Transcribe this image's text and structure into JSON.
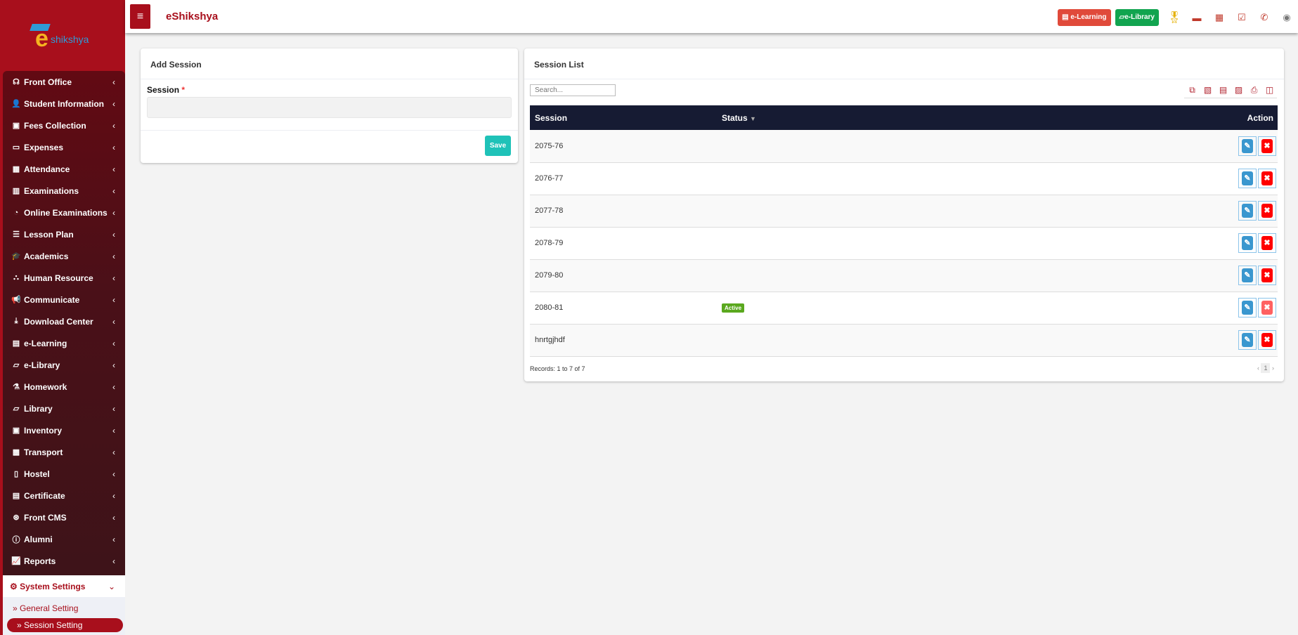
{
  "app": {
    "title": "eShikshya",
    "logo_text": "eshikshya"
  },
  "header": {
    "elearning": "e-Learning",
    "elibrary": "e-Library",
    "elearning_color": "#e04a3a",
    "elibrary_color": "#11a44f"
  },
  "sidebar": {
    "items": [
      {
        "label": "Front Office",
        "icon": "☊"
      },
      {
        "label": "Student Information",
        "icon": "👤"
      },
      {
        "label": "Fees Collection",
        "icon": "▣"
      },
      {
        "label": "Expenses",
        "icon": "▭"
      },
      {
        "label": "Attendance",
        "icon": "▦"
      },
      {
        "label": "Examinations",
        "icon": "▥"
      },
      {
        "label": "Online Examinations",
        "icon": "◔"
      },
      {
        "label": "Lesson Plan",
        "icon": "☰"
      },
      {
        "label": "Academics",
        "icon": "🎓"
      },
      {
        "label": "Human Resource",
        "icon": "⛬"
      },
      {
        "label": "Communicate",
        "icon": "📢"
      },
      {
        "label": "Download Center",
        "icon": "⤓"
      },
      {
        "label": "e-Learning",
        "icon": "▤"
      },
      {
        "label": "e-Library",
        "icon": "▱"
      },
      {
        "label": "Homework",
        "icon": "⚗"
      },
      {
        "label": "Library",
        "icon": "▱"
      },
      {
        "label": "Inventory",
        "icon": "▣"
      },
      {
        "label": "Transport",
        "icon": "▩"
      },
      {
        "label": "Hostel",
        "icon": "▯"
      },
      {
        "label": "Certificate",
        "icon": "▤"
      },
      {
        "label": "Front CMS",
        "icon": "⊛"
      },
      {
        "label": "Alumni",
        "icon": "ⓘ"
      },
      {
        "label": "Reports",
        "icon": "📈"
      }
    ],
    "active": {
      "label": "System Settings",
      "children": [
        "General Setting",
        "Session Setting"
      ]
    }
  },
  "add_session": {
    "title": "Add Session",
    "field_label": "Session",
    "required": "*",
    "value": "",
    "save": "Save"
  },
  "session_list": {
    "title": "Session List",
    "search_placeholder": "Search...",
    "columns": [
      "Session",
      "Status",
      "Action"
    ],
    "rows": [
      {
        "session": "2075-76",
        "status": ""
      },
      {
        "session": "2076-77",
        "status": ""
      },
      {
        "session": "2077-78",
        "status": ""
      },
      {
        "session": "2078-79",
        "status": ""
      },
      {
        "session": "2079-80",
        "status": ""
      },
      {
        "session": "2080-81",
        "status": "Active"
      },
      {
        "session": "hnrtgjhdf",
        "status": ""
      }
    ],
    "records": "Records: 1 to 7 of 7",
    "page": "1"
  }
}
